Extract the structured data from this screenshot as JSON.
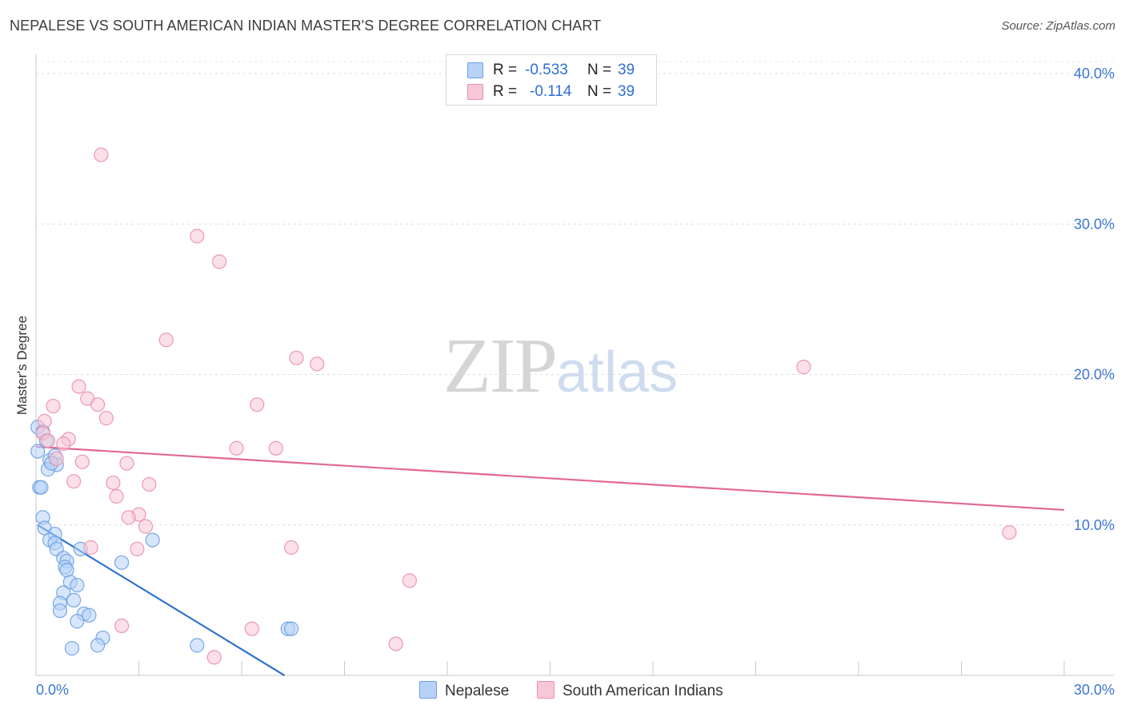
{
  "chart_data": {
    "type": "scatter",
    "title": "NEPALESE VS SOUTH AMERICAN INDIAN MASTER'S DEGREE CORRELATION CHART",
    "source": "Source: ZipAtlas.com",
    "watermark": {
      "zip": "ZIP",
      "atlas": "atlas"
    },
    "ylabel": "Master's Degree",
    "xlabel": "",
    "xlim": [
      0,
      30
    ],
    "ylim": [
      0,
      40.8
    ],
    "x_tick_labels": [
      {
        "value": 0,
        "label": "0.0%"
      },
      {
        "value": 30,
        "label": "30.0%"
      }
    ],
    "y_tick_labels": [
      {
        "value": 10,
        "label": "10.0%"
      },
      {
        "value": 20,
        "label": "20.0%"
      },
      {
        "value": 30,
        "label": "30.0%"
      },
      {
        "value": 40,
        "label": "40.0%"
      }
    ],
    "x_minor_ticks": [
      0,
      3,
      6,
      9,
      12,
      15,
      18,
      21,
      24,
      27,
      30
    ],
    "legend_stats": [
      {
        "r_label": "R =",
        "r_value": "-0.533",
        "n_label": "N =",
        "n_value": "39",
        "series": "Nepalese"
      },
      {
        "r_label": "R =",
        "r_value": "-0.114",
        "n_label": "N =",
        "n_value": "39",
        "series": "South American Indians"
      }
    ],
    "series": [
      {
        "name": "Nepalese",
        "color": "#6a9fe6",
        "fill": "#b7d2f6",
        "line_color": "#2f72d0",
        "trend": {
          "x": [
            0.05,
            7.25
          ],
          "y": [
            10.0,
            0.0
          ]
        },
        "points": [
          {
            "x": 0.05,
            "y": 16.5
          },
          {
            "x": 0.2,
            "y": 16.2
          },
          {
            "x": 0.05,
            "y": 14.9
          },
          {
            "x": 0.4,
            "y": 14.3
          },
          {
            "x": 0.55,
            "y": 14.6
          },
          {
            "x": 0.6,
            "y": 14.0
          },
          {
            "x": 0.35,
            "y": 13.7
          },
          {
            "x": 0.1,
            "y": 12.5
          },
          {
            "x": 0.15,
            "y": 12.5
          },
          {
            "x": 0.2,
            "y": 10.5
          },
          {
            "x": 0.25,
            "y": 9.8
          },
          {
            "x": 0.55,
            "y": 9.4
          },
          {
            "x": 0.4,
            "y": 9.0
          },
          {
            "x": 0.55,
            "y": 8.8
          },
          {
            "x": 0.6,
            "y": 8.4
          },
          {
            "x": 1.3,
            "y": 8.4
          },
          {
            "x": 0.8,
            "y": 7.8
          },
          {
            "x": 0.9,
            "y": 7.6
          },
          {
            "x": 0.85,
            "y": 7.2
          },
          {
            "x": 0.9,
            "y": 7.0
          },
          {
            "x": 1.0,
            "y": 6.2
          },
          {
            "x": 1.2,
            "y": 6.0
          },
          {
            "x": 0.8,
            "y": 5.5
          },
          {
            "x": 1.1,
            "y": 5.0
          },
          {
            "x": 0.7,
            "y": 4.8
          },
          {
            "x": 0.7,
            "y": 4.3
          },
          {
            "x": 1.4,
            "y": 4.1
          },
          {
            "x": 1.55,
            "y": 4.0
          },
          {
            "x": 1.2,
            "y": 3.6
          },
          {
            "x": 2.5,
            "y": 7.5
          },
          {
            "x": 3.4,
            "y": 9.0
          },
          {
            "x": 1.95,
            "y": 2.5
          },
          {
            "x": 1.8,
            "y": 2.0
          },
          {
            "x": 1.05,
            "y": 1.8
          },
          {
            "x": 4.7,
            "y": 2.0
          },
          {
            "x": 7.35,
            "y": 3.1
          },
          {
            "x": 7.45,
            "y": 3.1
          },
          {
            "x": 0.3,
            "y": 15.6
          },
          {
            "x": 0.45,
            "y": 14.1
          }
        ]
      },
      {
        "name": "South American Indians",
        "color": "#e98fab",
        "fill": "#f8c7d6",
        "line_color": "#e2688f",
        "trend": {
          "x": [
            0.0,
            30.0
          ],
          "y": [
            15.2,
            11.0
          ]
        },
        "points": [
          {
            "x": 1.9,
            "y": 34.6
          },
          {
            "x": 4.7,
            "y": 29.2
          },
          {
            "x": 5.35,
            "y": 27.5
          },
          {
            "x": 3.8,
            "y": 22.3
          },
          {
            "x": 7.6,
            "y": 21.1
          },
          {
            "x": 8.2,
            "y": 20.7
          },
          {
            "x": 22.4,
            "y": 20.5
          },
          {
            "x": 1.25,
            "y": 19.2
          },
          {
            "x": 1.5,
            "y": 18.4
          },
          {
            "x": 1.8,
            "y": 18.0
          },
          {
            "x": 6.45,
            "y": 18.0
          },
          {
            "x": 0.5,
            "y": 17.9
          },
          {
            "x": 2.05,
            "y": 17.1
          },
          {
            "x": 0.25,
            "y": 16.9
          },
          {
            "x": 0.2,
            "y": 16.1
          },
          {
            "x": 0.35,
            "y": 15.6
          },
          {
            "x": 0.95,
            "y": 15.7
          },
          {
            "x": 0.8,
            "y": 15.4
          },
          {
            "x": 5.85,
            "y": 15.1
          },
          {
            "x": 7.0,
            "y": 15.1
          },
          {
            "x": 0.6,
            "y": 14.4
          },
          {
            "x": 1.35,
            "y": 14.2
          },
          {
            "x": 2.65,
            "y": 14.1
          },
          {
            "x": 1.1,
            "y": 12.9
          },
          {
            "x": 2.25,
            "y": 12.8
          },
          {
            "x": 3.3,
            "y": 12.7
          },
          {
            "x": 2.35,
            "y": 11.9
          },
          {
            "x": 3.0,
            "y": 10.7
          },
          {
            "x": 2.7,
            "y": 10.5
          },
          {
            "x": 3.2,
            "y": 9.9
          },
          {
            "x": 1.6,
            "y": 8.5
          },
          {
            "x": 2.95,
            "y": 8.4
          },
          {
            "x": 7.45,
            "y": 8.5
          },
          {
            "x": 28.4,
            "y": 9.5
          },
          {
            "x": 10.9,
            "y": 6.3
          },
          {
            "x": 2.5,
            "y": 3.3
          },
          {
            "x": 6.3,
            "y": 3.1
          },
          {
            "x": 10.5,
            "y": 2.1
          },
          {
            "x": 5.2,
            "y": 1.2
          }
        ]
      }
    ]
  }
}
